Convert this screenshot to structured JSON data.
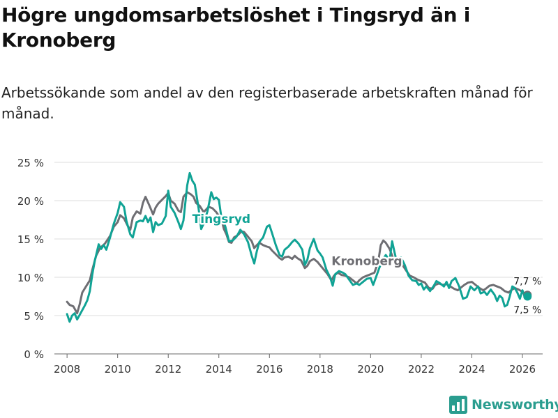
{
  "title": "Högre ungdomsarbetslöshet i Tingsryd än i Kronoberg",
  "subtitle": "Arbetssökande som andel av den registerbaserade arbetskraften månad för månad.",
  "brand": {
    "name": "Newsworthy",
    "color": "#2a9d8f",
    "logo_icon": "bar-chart-icon"
  },
  "chart_data": {
    "type": "line",
    "x_range": [
      2007.5,
      2026.8
    ],
    "y_range": [
      0,
      25
    ],
    "x_ticks": [
      2008,
      2010,
      2012,
      2014,
      2016,
      2018,
      2020,
      2022,
      2024,
      2026
    ],
    "x_tick_labels": [
      "2008",
      "2010",
      "2012",
      "2014",
      "2016",
      "2018",
      "2020",
      "2022",
      "2024",
      "2026"
    ],
    "y_ticks": [
      0,
      5,
      10,
      15,
      20,
      25
    ],
    "y_tick_labels": [
      "0 %",
      "5 %",
      "10 %",
      "15 %",
      "20 %",
      "25 %"
    ],
    "grid": true,
    "series": [
      {
        "name": "Kronoberg",
        "color": "#6e6e73",
        "end_label": "7,7 %",
        "points": [
          [
            2008.0,
            6.8
          ],
          [
            2008.1,
            6.4
          ],
          [
            2008.25,
            6.2
          ],
          [
            2008.4,
            5.3
          ],
          [
            2008.5,
            6.5
          ],
          [
            2008.6,
            8.0
          ],
          [
            2008.75,
            8.8
          ],
          [
            2008.9,
            9.6
          ],
          [
            2009.0,
            11.0
          ],
          [
            2009.15,
            12.8
          ],
          [
            2009.3,
            13.8
          ],
          [
            2009.5,
            14.4
          ],
          [
            2009.7,
            15.4
          ],
          [
            2009.85,
            16.6
          ],
          [
            2010.0,
            17.2
          ],
          [
            2010.1,
            18.1
          ],
          [
            2010.25,
            17.7
          ],
          [
            2010.4,
            16.7
          ],
          [
            2010.5,
            16.2
          ],
          [
            2010.6,
            17.8
          ],
          [
            2010.75,
            18.6
          ],
          [
            2010.9,
            18.3
          ],
          [
            2011.0,
            19.7
          ],
          [
            2011.1,
            20.5
          ],
          [
            2011.25,
            19.4
          ],
          [
            2011.4,
            18.2
          ],
          [
            2011.5,
            19.1
          ],
          [
            2011.6,
            19.6
          ],
          [
            2011.75,
            20.1
          ],
          [
            2011.9,
            20.6
          ],
          [
            2012.0,
            21.0
          ],
          [
            2012.1,
            20.0
          ],
          [
            2012.25,
            19.6
          ],
          [
            2012.4,
            18.7
          ],
          [
            2012.5,
            18.5
          ],
          [
            2012.6,
            20.5
          ],
          [
            2012.75,
            21.1
          ],
          [
            2012.9,
            20.8
          ],
          [
            2013.0,
            20.5
          ],
          [
            2013.1,
            19.7
          ],
          [
            2013.25,
            19.3
          ],
          [
            2013.4,
            18.5
          ],
          [
            2013.6,
            19.2
          ],
          [
            2013.75,
            19.0
          ],
          [
            2013.9,
            18.5
          ],
          [
            2014.0,
            18.0
          ],
          [
            2014.1,
            17.6
          ],
          [
            2014.2,
            16.3
          ],
          [
            2014.3,
            15.6
          ],
          [
            2014.4,
            14.6
          ],
          [
            2014.5,
            14.5
          ],
          [
            2014.6,
            15.2
          ],
          [
            2014.75,
            15.5
          ],
          [
            2014.9,
            16.0
          ],
          [
            2015.0,
            15.9
          ],
          [
            2015.15,
            15.3
          ],
          [
            2015.3,
            14.7
          ],
          [
            2015.4,
            13.8
          ],
          [
            2015.5,
            14.2
          ],
          [
            2015.6,
            14.5
          ],
          [
            2015.75,
            14.2
          ],
          [
            2015.9,
            14.0
          ],
          [
            2016.0,
            13.9
          ],
          [
            2016.1,
            13.5
          ],
          [
            2016.25,
            13.0
          ],
          [
            2016.4,
            12.5
          ],
          [
            2016.5,
            12.3
          ],
          [
            2016.6,
            12.6
          ],
          [
            2016.75,
            12.7
          ],
          [
            2016.9,
            12.4
          ],
          [
            2017.0,
            12.8
          ],
          [
            2017.1,
            12.5
          ],
          [
            2017.25,
            12.2
          ],
          [
            2017.4,
            11.2
          ],
          [
            2017.5,
            11.5
          ],
          [
            2017.6,
            12.1
          ],
          [
            2017.75,
            12.4
          ],
          [
            2017.9,
            12.0
          ],
          [
            2018.0,
            11.6
          ],
          [
            2018.15,
            11.0
          ],
          [
            2018.3,
            10.4
          ],
          [
            2018.45,
            9.6
          ],
          [
            2018.55,
            10.2
          ],
          [
            2018.7,
            10.6
          ],
          [
            2018.85,
            10.3
          ],
          [
            2019.0,
            10.2
          ],
          [
            2019.15,
            10.0
          ],
          [
            2019.3,
            9.6
          ],
          [
            2019.45,
            9.2
          ],
          [
            2019.55,
            9.6
          ],
          [
            2019.7,
            10.0
          ],
          [
            2019.85,
            10.2
          ],
          [
            2020.0,
            10.4
          ],
          [
            2020.15,
            10.6
          ],
          [
            2020.3,
            12.0
          ],
          [
            2020.4,
            14.2
          ],
          [
            2020.5,
            14.8
          ],
          [
            2020.6,
            14.5
          ],
          [
            2020.75,
            13.7
          ],
          [
            2020.9,
            12.4
          ],
          [
            2021.0,
            12.6
          ],
          [
            2021.15,
            12.0
          ],
          [
            2021.3,
            11.4
          ],
          [
            2021.4,
            10.9
          ],
          [
            2021.55,
            10.2
          ],
          [
            2021.7,
            10.0
          ],
          [
            2021.85,
            9.7
          ],
          [
            2022.0,
            9.5
          ],
          [
            2022.15,
            9.3
          ],
          [
            2022.3,
            8.6
          ],
          [
            2022.45,
            8.5
          ],
          [
            2022.55,
            9.0
          ],
          [
            2022.7,
            9.2
          ],
          [
            2022.85,
            9.0
          ],
          [
            2023.0,
            9.1
          ],
          [
            2023.15,
            8.8
          ],
          [
            2023.3,
            8.5
          ],
          [
            2023.45,
            8.3
          ],
          [
            2023.55,
            8.6
          ],
          [
            2023.7,
            9.0
          ],
          [
            2023.85,
            9.3
          ],
          [
            2024.0,
            9.4
          ],
          [
            2024.15,
            9.0
          ],
          [
            2024.3,
            8.6
          ],
          [
            2024.45,
            8.3
          ],
          [
            2024.55,
            8.5
          ],
          [
            2024.7,
            8.9
          ],
          [
            2024.85,
            9.0
          ],
          [
            2025.0,
            8.8
          ],
          [
            2025.15,
            8.6
          ],
          [
            2025.3,
            8.2
          ],
          [
            2025.45,
            8.0
          ],
          [
            2025.55,
            8.3
          ],
          [
            2025.7,
            8.6
          ],
          [
            2025.85,
            8.4
          ],
          [
            2026.0,
            8.1
          ],
          [
            2026.1,
            7.9
          ],
          [
            2026.2,
            7.7
          ]
        ]
      },
      {
        "name": "Tingsryd",
        "color": "#10a395",
        "end_label": "7,5 %",
        "points": [
          [
            2008.0,
            5.2
          ],
          [
            2008.1,
            4.2
          ],
          [
            2008.2,
            5.0
          ],
          [
            2008.3,
            5.3
          ],
          [
            2008.4,
            4.5
          ],
          [
            2008.5,
            5.1
          ],
          [
            2008.6,
            5.7
          ],
          [
            2008.7,
            6.3
          ],
          [
            2008.8,
            7.0
          ],
          [
            2008.9,
            8.2
          ],
          [
            2009.0,
            10.4
          ],
          [
            2009.1,
            12.2
          ],
          [
            2009.25,
            14.3
          ],
          [
            2009.35,
            13.7
          ],
          [
            2009.45,
            14.2
          ],
          [
            2009.55,
            13.6
          ],
          [
            2009.7,
            15.2
          ],
          [
            2009.85,
            17.0
          ],
          [
            2010.0,
            18.4
          ],
          [
            2010.1,
            19.8
          ],
          [
            2010.25,
            19.2
          ],
          [
            2010.35,
            17.3
          ],
          [
            2010.5,
            15.6
          ],
          [
            2010.6,
            15.2
          ],
          [
            2010.75,
            17.2
          ],
          [
            2010.9,
            17.4
          ],
          [
            2011.0,
            17.3
          ],
          [
            2011.1,
            18.0
          ],
          [
            2011.2,
            17.2
          ],
          [
            2011.3,
            17.8
          ],
          [
            2011.4,
            15.9
          ],
          [
            2011.5,
            17.2
          ],
          [
            2011.6,
            16.8
          ],
          [
            2011.75,
            17.0
          ],
          [
            2011.9,
            18.0
          ],
          [
            2012.0,
            21.3
          ],
          [
            2012.1,
            19.2
          ],
          [
            2012.25,
            18.4
          ],
          [
            2012.4,
            17.2
          ],
          [
            2012.5,
            16.3
          ],
          [
            2012.6,
            17.4
          ],
          [
            2012.75,
            22.0
          ],
          [
            2012.85,
            23.6
          ],
          [
            2012.95,
            22.6
          ],
          [
            2013.05,
            22.1
          ],
          [
            2013.2,
            19.0
          ],
          [
            2013.3,
            16.3
          ],
          [
            2013.4,
            17.0
          ],
          [
            2013.55,
            18.6
          ],
          [
            2013.7,
            21.1
          ],
          [
            2013.8,
            20.2
          ],
          [
            2013.9,
            20.4
          ],
          [
            2014.0,
            20.1
          ],
          [
            2014.1,
            17.8
          ],
          [
            2014.25,
            16.7
          ],
          [
            2014.4,
            14.7
          ],
          [
            2014.55,
            14.8
          ],
          [
            2014.7,
            15.3
          ],
          [
            2014.85,
            16.2
          ],
          [
            2015.0,
            15.6
          ],
          [
            2015.15,
            14.6
          ],
          [
            2015.3,
            12.8
          ],
          [
            2015.4,
            11.8
          ],
          [
            2015.5,
            13.4
          ],
          [
            2015.6,
            14.6
          ],
          [
            2015.75,
            15.2
          ],
          [
            2015.9,
            16.6
          ],
          [
            2016.0,
            16.8
          ],
          [
            2016.1,
            15.8
          ],
          [
            2016.25,
            14.2
          ],
          [
            2016.4,
            12.9
          ],
          [
            2016.5,
            12.7
          ],
          [
            2016.6,
            13.6
          ],
          [
            2016.75,
            14.0
          ],
          [
            2016.9,
            14.6
          ],
          [
            2017.0,
            14.9
          ],
          [
            2017.15,
            14.4
          ],
          [
            2017.3,
            13.6
          ],
          [
            2017.4,
            11.6
          ],
          [
            2017.5,
            12.3
          ],
          [
            2017.6,
            13.8
          ],
          [
            2017.75,
            15.0
          ],
          [
            2017.9,
            13.5
          ],
          [
            2018.0,
            13.1
          ],
          [
            2018.1,
            12.6
          ],
          [
            2018.25,
            11.0
          ],
          [
            2018.4,
            10.0
          ],
          [
            2018.5,
            8.9
          ],
          [
            2018.6,
            10.4
          ],
          [
            2018.75,
            10.8
          ],
          [
            2018.9,
            10.6
          ],
          [
            2019.0,
            10.4
          ],
          [
            2019.15,
            9.7
          ],
          [
            2019.3,
            9.0
          ],
          [
            2019.45,
            9.2
          ],
          [
            2019.55,
            9.0
          ],
          [
            2019.7,
            9.4
          ],
          [
            2019.85,
            9.8
          ],
          [
            2020.0,
            9.9
          ],
          [
            2020.1,
            9.0
          ],
          [
            2020.2,
            9.9
          ],
          [
            2020.35,
            11.3
          ],
          [
            2020.5,
            12.4
          ],
          [
            2020.6,
            12.9
          ],
          [
            2020.75,
            12.2
          ],
          [
            2020.85,
            14.7
          ],
          [
            2020.95,
            13.2
          ],
          [
            2021.05,
            11.8
          ],
          [
            2021.2,
            12.6
          ],
          [
            2021.35,
            11.6
          ],
          [
            2021.5,
            10.2
          ],
          [
            2021.65,
            9.6
          ],
          [
            2021.8,
            9.5
          ],
          [
            2021.9,
            9.0
          ],
          [
            2022.0,
            9.2
          ],
          [
            2022.1,
            8.4
          ],
          [
            2022.2,
            8.8
          ],
          [
            2022.35,
            8.2
          ],
          [
            2022.5,
            8.9
          ],
          [
            2022.6,
            9.5
          ],
          [
            2022.75,
            9.2
          ],
          [
            2022.9,
            8.8
          ],
          [
            2023.0,
            9.4
          ],
          [
            2023.1,
            8.6
          ],
          [
            2023.2,
            9.5
          ],
          [
            2023.35,
            9.9
          ],
          [
            2023.5,
            8.8
          ],
          [
            2023.65,
            7.2
          ],
          [
            2023.8,
            7.4
          ],
          [
            2023.95,
            8.8
          ],
          [
            2024.1,
            8.3
          ],
          [
            2024.25,
            8.8
          ],
          [
            2024.35,
            7.9
          ],
          [
            2024.5,
            8.1
          ],
          [
            2024.6,
            7.7
          ],
          [
            2024.75,
            8.4
          ],
          [
            2024.9,
            7.7
          ],
          [
            2025.0,
            6.9
          ],
          [
            2025.1,
            7.6
          ],
          [
            2025.2,
            7.3
          ],
          [
            2025.3,
            6.2
          ],
          [
            2025.4,
            6.4
          ],
          [
            2025.5,
            7.5
          ],
          [
            2025.6,
            8.8
          ],
          [
            2025.7,
            8.6
          ],
          [
            2025.8,
            8.0
          ],
          [
            2025.9,
            7.2
          ],
          [
            2026.0,
            8.3
          ],
          [
            2026.1,
            7.4
          ],
          [
            2026.2,
            7.5
          ]
        ]
      }
    ],
    "annotations": [
      {
        "text": "Tingsryd",
        "series": "Tingsryd",
        "x": 2014.1,
        "y": 17.1
      },
      {
        "text": "Kronoberg",
        "series": "Kronoberg",
        "x": 2019.85,
        "y": 11.6
      }
    ]
  }
}
